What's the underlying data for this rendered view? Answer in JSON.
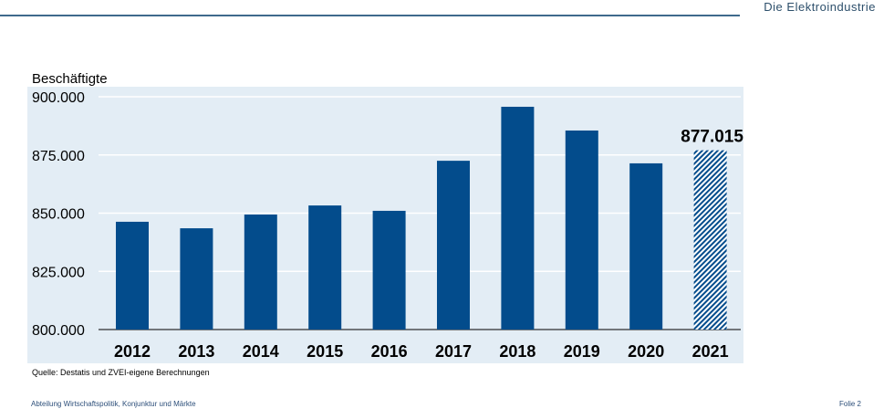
{
  "header": {
    "logo_text": "Die Elektroindustrie"
  },
  "footer": {
    "left": "Abteilung Wirtschaftspolitik, Konjunktur und Märkte",
    "right": "Folie 2"
  },
  "chart_data": {
    "type": "bar",
    "ylabel": "Beschäftigte",
    "categories": [
      "2012",
      "2013",
      "2014",
      "2015",
      "2016",
      "2017",
      "2018",
      "2019",
      "2020",
      "2021"
    ],
    "values": [
      846300,
      843500,
      849400,
      853300,
      851000,
      872500,
      895700,
      885500,
      871400,
      877015
    ],
    "ylim": [
      800000,
      900000
    ],
    "yticks": [
      800000,
      825000,
      850000,
      875000,
      900000
    ],
    "ytick_labels": [
      "800.000",
      "825.000",
      "850.000",
      "875.000",
      "900.000"
    ],
    "data_labels": [
      {
        "category": "2021",
        "text": "877.015"
      }
    ],
    "hatched_categories": [
      "2021"
    ],
    "grid": true,
    "bar_color": "#034c8c",
    "background_color": "#e3edf5",
    "source": "Quelle: Destatis und ZVEI-eigene Berechnungen"
  }
}
